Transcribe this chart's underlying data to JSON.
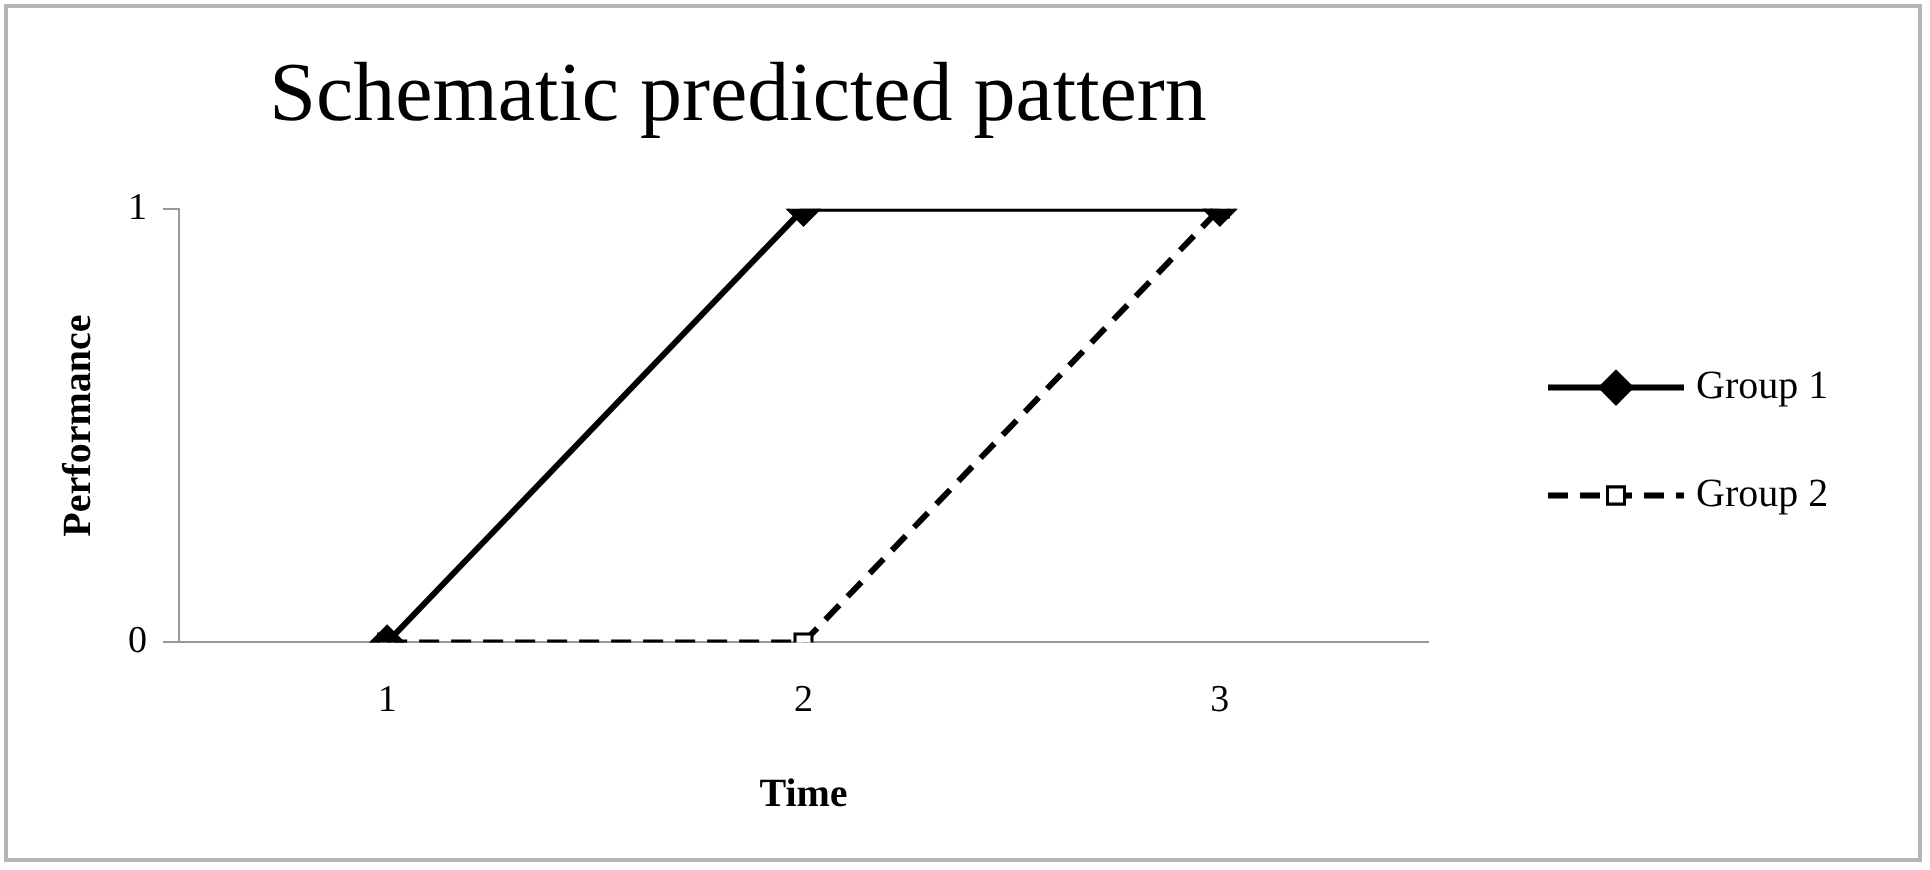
{
  "chart_data": {
    "type": "line",
    "title": "Schematic predicted pattern",
    "xlabel": "Time",
    "ylabel": "Performance",
    "categories": [
      "1",
      "2",
      "3"
    ],
    "series": [
      {
        "name": "Group 1",
        "color": "#000000",
        "values": [
          0,
          1,
          1
        ],
        "marker": "diamond",
        "line_style": "solid"
      },
      {
        "name": "Group 2",
        "color": "#000000",
        "values": [
          0,
          0,
          1
        ],
        "marker": "square",
        "line_style": "dashed"
      }
    ],
    "ylim": [
      0,
      1
    ],
    "yticks": [
      0,
      1
    ],
    "grid": false,
    "legend": "right"
  }
}
